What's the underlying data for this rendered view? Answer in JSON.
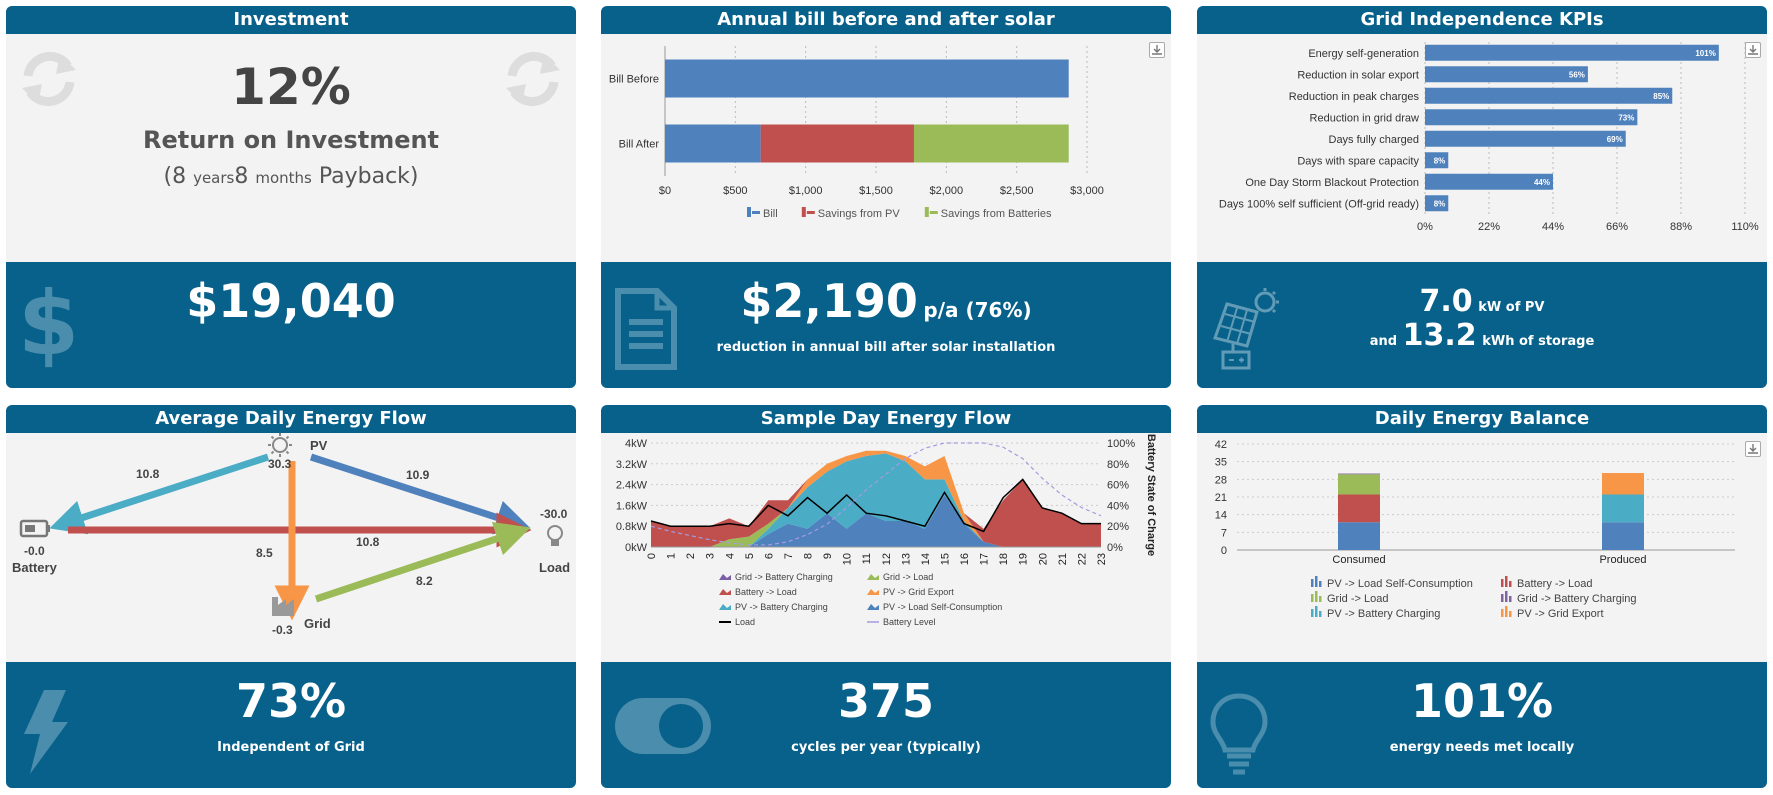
{
  "investment": {
    "title": "Investment",
    "roi": "12%",
    "roi_label": "Return on Investment",
    "payback_open": "(8",
    "years_unit": "years",
    "months_num": "8",
    "months_unit": "months",
    "payback_close": "Payback)",
    "cost": "$19,040"
  },
  "bill": {
    "title": "Annual bill before and after solar",
    "saving": "$2,190",
    "saving_suffix": "p/a (76%)",
    "caption": "reduction in annual bill after solar installation",
    "legend": [
      "Bill",
      "Savings from PV",
      "Savings from Batteries"
    ]
  },
  "kpi": {
    "title": "Grid Independence KPIs",
    "pv_value": "7.0",
    "pv_unit": "kW of PV",
    "and": "and",
    "storage_value": "13.2",
    "storage_unit": "kWh of storage"
  },
  "flow": {
    "title": "Average Daily Energy Flow",
    "pv_label": "PV",
    "pv_value": "30.3",
    "battery_label": "Battery",
    "battery_value": "-0.0",
    "load_label": "Load",
    "load_value": "-30.0",
    "grid_label": "Grid",
    "grid_value": "-0.3",
    "pv_to_battery": "10.8",
    "pv_to_load": "10.9",
    "battery_to_load": "10.8",
    "pv_to_grid": "8.5",
    "grid_to_load": "8.2",
    "independent": "73%",
    "independent_label": "Independent of Grid"
  },
  "sample": {
    "title": "Sample Day Energy Flow",
    "cycles": "375",
    "cycles_label": "cycles per year (typically)",
    "legend": [
      {
        "label": "Grid -> Battery Charging",
        "color": "#7a5fa6",
        "kind": "area"
      },
      {
        "label": "Grid -> Load",
        "color": "#9bbb59",
        "kind": "area"
      },
      {
        "label": "Battery -> Load",
        "color": "#c0504d",
        "kind": "area"
      },
      {
        "label": "PV -> Grid Export",
        "color": "#f79646",
        "kind": "area"
      },
      {
        "label": "PV -> Battery Charging",
        "color": "#4bacc6",
        "kind": "area"
      },
      {
        "label": "PV -> Load Self-Consumption",
        "color": "#4f81bd",
        "kind": "area"
      },
      {
        "label": "Load",
        "color": "#000000",
        "kind": "line"
      },
      {
        "label": "Battery Level",
        "color": "#a59be0",
        "kind": "dash"
      }
    ]
  },
  "balance": {
    "title": "Daily Energy Balance",
    "met": "101%",
    "met_label": "energy needs met locally",
    "legend": [
      {
        "label": "PV -> Load Self-Consumption",
        "color": "#4f81bd"
      },
      {
        "label": "Battery -> Load",
        "color": "#c0504d"
      },
      {
        "label": "Grid -> Load",
        "color": "#9bbb59"
      },
      {
        "label": "Grid -> Battery Charging",
        "color": "#8064a2"
      },
      {
        "label": "PV -> Battery Charging",
        "color": "#4bacc6"
      },
      {
        "label": "PV -> Grid Export",
        "color": "#f79646"
      }
    ]
  },
  "colors": {
    "header": "#07618a",
    "pv": "#4f81bd",
    "savings_pv": "#c0504d",
    "savings_batt": "#9bbb59"
  },
  "chart_data": [
    {
      "type": "bar",
      "orientation": "horizontal",
      "stacked": true,
      "categories": [
        "Bill Before",
        "Bill After"
      ],
      "series": [
        {
          "name": "Bill",
          "values": [
            2870,
            680
          ],
          "color": "#4f81bd"
        },
        {
          "name": "Savings from PV",
          "values": [
            0,
            1090
          ],
          "color": "#c0504d"
        },
        {
          "name": "Savings from Batteries",
          "values": [
            0,
            1100
          ],
          "color": "#9bbb59"
        }
      ],
      "xlim": [
        0,
        3000
      ],
      "xticks": [
        "$0",
        "$500",
        "$1,000",
        "$1,500",
        "$2,000",
        "$2,500",
        "$3,000"
      ],
      "legend_position": "bottom"
    },
    {
      "type": "bar",
      "orientation": "horizontal",
      "categories": [
        "Energy self-generation",
        "Reduction in solar export",
        "Reduction in peak charges",
        "Reduction in grid draw",
        "Days fully charged",
        "Days with spare capacity",
        "One Day Storm Blackout Protection",
        "Days 100% self sufficient (Off-grid ready)"
      ],
      "values": [
        101,
        56,
        85,
        73,
        69,
        8,
        44,
        8
      ],
      "labels": [
        "101%",
        "56%",
        "85%",
        "73%",
        "69%",
        "8%",
        "44%",
        "8%"
      ],
      "xlim": [
        0,
        110
      ],
      "xticks": [
        "0%",
        "22%",
        "44%",
        "66%",
        "88%",
        "110%"
      ]
    },
    {
      "type": "area",
      "stacked": true,
      "x": [
        0,
        1,
        2,
        3,
        4,
        5,
        6,
        7,
        8,
        9,
        10,
        11,
        12,
        13,
        14,
        15,
        16,
        17,
        18,
        19,
        20,
        21,
        22,
        23
      ],
      "series": [
        {
          "name": "PV -> Load Self-Consumption",
          "color": "#4f81bd",
          "values": [
            0,
            0,
            0,
            0,
            0,
            0,
            0.5,
            0.9,
            0.7,
            1.3,
            0.7,
            1.3,
            1.0,
            1.0,
            0.7,
            2.0,
            0.9,
            0.2,
            0,
            0,
            0,
            0,
            0,
            0
          ]
        },
        {
          "name": "PV -> Battery Charging",
          "color": "#4bacc6",
          "values": [
            0,
            0,
            0,
            0,
            0,
            0,
            0.2,
            0.6,
            1.6,
            1.6,
            2.6,
            2.2,
            2.6,
            2.3,
            1.9,
            0.6,
            0.1,
            0,
            0,
            0,
            0,
            0,
            0,
            0
          ]
        },
        {
          "name": "PV -> Grid Export",
          "color": "#f79646",
          "values": [
            0,
            0,
            0,
            0,
            0,
            0,
            0,
            0,
            0.3,
            0.3,
            0.2,
            0.2,
            0.1,
            0.2,
            0.5,
            0.9,
            0.3,
            0,
            0,
            0,
            0,
            0,
            0,
            0
          ]
        },
        {
          "name": "Grid -> Load",
          "color": "#9bbb59",
          "values": [
            0,
            0,
            0,
            0,
            0.3,
            0.4,
            0.2,
            0,
            0,
            0,
            0,
            0,
            0,
            0,
            0,
            0,
            0,
            0,
            0,
            0,
            0,
            0,
            0,
            0
          ]
        },
        {
          "name": "Battery -> Load",
          "color": "#c0504d",
          "values": [
            1.0,
            0.8,
            0.8,
            0.8,
            0.8,
            0.4,
            0.9,
            0.3,
            0,
            0,
            0,
            0,
            0,
            0,
            0,
            0,
            0,
            0.5,
            1.8,
            2.6,
            1.5,
            1.3,
            0.9,
            0.9
          ]
        }
      ],
      "line": {
        "name": "Load",
        "color": "#000000",
        "values": [
          1.0,
          0.8,
          0.8,
          0.8,
          0.9,
          0.8,
          1.6,
          1.2,
          1.9,
          1.3,
          2.0,
          1.3,
          1.2,
          1.0,
          0.8,
          2.1,
          0.9,
          0.6,
          1.9,
          2.6,
          1.5,
          1.3,
          0.9,
          0.9
        ]
      },
      "battery_level": {
        "name": "Battery Level",
        "color": "#a59be0",
        "values": [
          20,
          15,
          11,
          7,
          4,
          2,
          2,
          5,
          12,
          22,
          38,
          55,
          70,
          85,
          95,
          100,
          100,
          100,
          96,
          85,
          66,
          50,
          38,
          30
        ]
      },
      "ylim": [
        0,
        4
      ],
      "yticks": [
        "0kW",
        "0.8kW",
        "1.6kW",
        "2.4kW",
        "3.2kW",
        "4kW"
      ],
      "y2lim": [
        0,
        100
      ],
      "y2ticks": [
        "0%",
        "20%",
        "40%",
        "60%",
        "80%",
        "100%"
      ],
      "y2label": "Battery State of Charge",
      "legend_position": "bottom"
    },
    {
      "type": "bar",
      "stacked": true,
      "categories": [
        "Consumed",
        "Produced"
      ],
      "series": [
        {
          "name": "PV -> Load Self-Consumption",
          "color": "#4f81bd",
          "values": [
            11,
            11
          ]
        },
        {
          "name": "Battery -> Load",
          "color": "#c0504d",
          "values": [
            11,
            0
          ]
        },
        {
          "name": "Grid -> Load",
          "color": "#9bbb59",
          "values": [
            8,
            0
          ]
        },
        {
          "name": "Grid -> Battery Charging",
          "color": "#8064a2",
          "values": [
            0.3,
            0
          ]
        },
        {
          "name": "PV -> Battery Charging",
          "color": "#4bacc6",
          "values": [
            0,
            11
          ]
        },
        {
          "name": "PV -> Grid Export",
          "color": "#f79646",
          "values": [
            0,
            8.5
          ]
        }
      ],
      "ylim": [
        0,
        42
      ],
      "yticks": [
        "0",
        "7",
        "14",
        "21",
        "28",
        "35",
        "42"
      ],
      "legend_position": "bottom"
    }
  ]
}
